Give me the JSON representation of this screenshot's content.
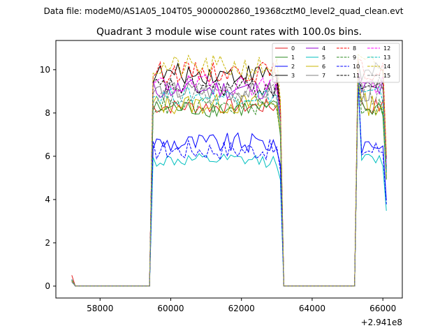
{
  "figure": {
    "suptitle": "Data file: modeM0/AS1A05_104T05_9000002860_19368cztM0_level2_quad_clean.evt"
  },
  "chart_data": {
    "type": "line",
    "title": "Quadrant 3 module wise count rates with 100.0s bins.",
    "xlabel": "",
    "ylabel": "",
    "x_offset_label": "+2.941e8",
    "x_offset": 294100000,
    "xlim": [
      56750,
      66550
    ],
    "ylim": [
      -0.55,
      11.35
    ],
    "xticks": [
      58000,
      60000,
      62000,
      64000,
      66000
    ],
    "xtick_labels": [
      "58000",
      "60000",
      "62000",
      "64000",
      "66000"
    ],
    "yticks": [
      0,
      2,
      4,
      6,
      8,
      10
    ],
    "ytick_labels": [
      "0",
      "2",
      "4",
      "6",
      "8",
      "10"
    ],
    "grid": false,
    "legend_position": "top-right",
    "segments": [
      {
        "start": 57200,
        "end": 59400,
        "rising_edge": false
      },
      {
        "start": 59500,
        "end": 63100,
        "rising_edge": true
      },
      {
        "start": 65300,
        "end": 66100,
        "rising_edge": true
      }
    ],
    "gaps": [
      {
        "from": 59400,
        "to": 59500
      },
      {
        "from": 63100,
        "to": 63200
      },
      {
        "from": 65200,
        "to": 65300
      }
    ],
    "quiet_level": 0.0,
    "first_point_start_values": [
      0.5,
      0.3,
      0.25,
      0.3,
      0.3,
      0.2,
      0.3,
      0.25,
      0.3,
      0.25,
      0.2,
      0.3,
      0.25,
      0.3,
      0.25,
      0.2
    ],
    "series": [
      {
        "name": "0",
        "color": "#e41a1c",
        "dash": "solid",
        "level": 8.3,
        "amp": 0.22
      },
      {
        "name": "1",
        "color": "#2e8b22",
        "dash": "solid",
        "level": 8.2,
        "amp": 0.25
      },
      {
        "name": "2",
        "color": "#0000ff",
        "dash": "solid",
        "level": 6.6,
        "amp": 0.3
      },
      {
        "name": "3",
        "color": "#000000",
        "dash": "solid",
        "level": 9.8,
        "amp": 0.3
      },
      {
        "name": "4",
        "color": "#9400d3",
        "dash": "solid",
        "level": 9.1,
        "amp": 0.3
      },
      {
        "name": "5",
        "color": "#00bfbf",
        "dash": "solid",
        "level": 5.8,
        "amp": 0.2
      },
      {
        "name": "6",
        "color": "#c8b400",
        "dash": "solid",
        "level": 8.4,
        "amp": 0.3
      },
      {
        "name": "7",
        "color": "#808080",
        "dash": "solid",
        "level": 9.0,
        "amp": 0.3
      },
      {
        "name": "8",
        "color": "#ff0000",
        "dash": "dashed",
        "level": 9.9,
        "amp": 0.3
      },
      {
        "name": "9",
        "color": "#2e8b22",
        "dash": "dashed",
        "level": 8.3,
        "amp": 0.25
      },
      {
        "name": "10",
        "color": "#0000ff",
        "dash": "dashed",
        "level": 6.3,
        "amp": 0.3
      },
      {
        "name": "11",
        "color": "#000000",
        "dash": "dashed",
        "level": 9.2,
        "amp": 0.3
      },
      {
        "name": "12",
        "color": "#ff00ff",
        "dash": "dashed",
        "level": 9.3,
        "amp": 0.3
      },
      {
        "name": "13",
        "color": "#00bfbf",
        "dash": "dashed",
        "level": 8.8,
        "amp": 0.25
      },
      {
        "name": "14",
        "color": "#c8b400",
        "dash": "dashed",
        "level": 10.1,
        "amp": 0.35
      },
      {
        "name": "15",
        "color": "#808080",
        "dash": "dashed",
        "level": 8.9,
        "amp": 0.3
      }
    ]
  }
}
